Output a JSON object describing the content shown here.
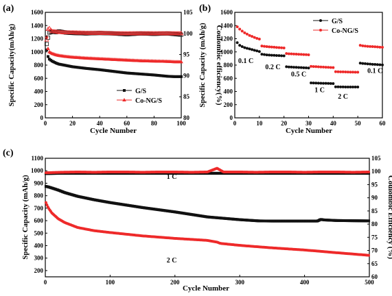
{
  "colors": {
    "black_series": "#111111",
    "red_series": "#ee2a2a"
  },
  "chart_data": [
    {
      "id": "a",
      "panel_label": "(a)",
      "type": "scatter",
      "xlabel": "Cycle Number",
      "ylabel": "Specific Capacity(mAh/g)",
      "ylabel_right": "Coulombic efficiency(%)",
      "xlim": [
        0,
        100
      ],
      "ylim": [
        0,
        1600
      ],
      "ylim_right": [
        80,
        105
      ],
      "xticks": [
        "0",
        "20",
        "40",
        "60",
        "80",
        "100"
      ],
      "yticks": [
        "0",
        "200",
        "400",
        "600",
        "800",
        "1000",
        "1200",
        "1400",
        "1600"
      ],
      "yticks_right": [
        "80",
        "85",
        "90",
        "95",
        "100",
        "105"
      ],
      "legend": [
        "G/S",
        "Co-NG/S"
      ],
      "legend_position": "lower-right",
      "series": [
        {
          "name": "G/S",
          "marker": "square",
          "color": "#111111",
          "x": [
            1,
            2,
            3,
            5,
            8,
            10,
            15,
            20,
            30,
            40,
            50,
            60,
            70,
            80,
            90,
            95,
            100
          ],
          "y": [
            1030,
            930,
            890,
            860,
            830,
            815,
            795,
            775,
            750,
            730,
            705,
            680,
            665,
            650,
            630,
            625,
            625
          ]
        },
        {
          "name": "Co-NG/S",
          "marker": "triangle",
          "color": "#ee2a2a",
          "x": [
            1,
            2,
            3,
            5,
            8,
            10,
            15,
            20,
            30,
            40,
            50,
            60,
            70,
            80,
            90,
            95,
            100
          ],
          "y": [
            1230,
            1050,
            1000,
            975,
            955,
            945,
            930,
            920,
            905,
            895,
            885,
            875,
            865,
            860,
            855,
            850,
            850
          ]
        },
        {
          "name": "",
          "axis": "right",
          "marker": "square-open",
          "color": "#111111",
          "x": [
            1,
            2,
            3,
            5,
            8,
            10,
            15,
            20,
            30,
            40,
            50,
            60,
            70,
            80,
            90,
            100
          ],
          "y": [
            97.5,
            99.0,
            100.2,
            100.4,
            100.3,
            100.5,
            100.2,
            100.1,
            100.0,
            100.1,
            100.0,
            99.8,
            100.0,
            99.9,
            100.0,
            99.7
          ]
        },
        {
          "name": "",
          "axis": "right",
          "marker": "triangle-open",
          "color": "#ee2a2a",
          "x": [
            1,
            2,
            3,
            4,
            5,
            8,
            10,
            15,
            20,
            30,
            40,
            50,
            60,
            70,
            80,
            90,
            100
          ],
          "y": [
            98.5,
            101.0,
            101.2,
            100.8,
            100.5,
            100.4,
            100.3,
            100.2,
            100.2,
            100.1,
            100.1,
            100.0,
            100.0,
            100.0,
            100.0,
            100.0,
            100.0
          ]
        }
      ]
    },
    {
      "id": "b",
      "panel_label": "(b)",
      "type": "scatter",
      "xlabel": "Cycle Number",
      "ylabel": "Specific Capacity (mAh/g)",
      "xlim": [
        0,
        60
      ],
      "ylim": [
        0,
        1600
      ],
      "xticks": [
        "0",
        "10",
        "20",
        "30",
        "40",
        "50",
        "60"
      ],
      "yticks": [
        "0",
        "200",
        "400",
        "600",
        "800",
        "1000",
        "1200",
        "1400",
        "1600"
      ],
      "legend": [
        "G/S",
        "Co-NG/S"
      ],
      "legend_position": "top-right",
      "annotations": [
        {
          "text": "0.1 C",
          "x": 4.5,
          "y": 830
        },
        {
          "text": "0.2 C",
          "x": 15.5,
          "y": 740
        },
        {
          "text": "0.5 C",
          "x": 26,
          "y": 630
        },
        {
          "text": "1 C",
          "x": 34.5,
          "y": 390
        },
        {
          "text": "2 C",
          "x": 44,
          "y": 290
        },
        {
          "text": "0.1 C",
          "x": 57,
          "y": 680
        }
      ],
      "series": [
        {
          "name": "G/S",
          "marker": "circle",
          "color": "#111111",
          "x": [
            1,
            2,
            3,
            4,
            5,
            6,
            7,
            8,
            9,
            10,
            11,
            12,
            13,
            14,
            15,
            16,
            17,
            18,
            19,
            20,
            21,
            22,
            23,
            24,
            25,
            26,
            27,
            28,
            29,
            30,
            31,
            32,
            33,
            34,
            35,
            36,
            37,
            38,
            39,
            40,
            41,
            42,
            43,
            44,
            45,
            46,
            47,
            48,
            49,
            50,
            51,
            52,
            53,
            54,
            55,
            56,
            57,
            58,
            59,
            60
          ],
          "y": [
            1140,
            1100,
            1080,
            1065,
            1055,
            1045,
            1035,
            1025,
            1015,
            1005,
            965,
            960,
            955,
            952,
            950,
            948,
            946,
            944,
            942,
            940,
            775,
            772,
            770,
            768,
            766,
            764,
            762,
            760,
            758,
            756,
            530,
            528,
            527,
            526,
            525,
            524,
            523,
            522,
            521,
            520,
            470,
            470,
            469,
            469,
            468,
            468,
            468,
            467,
            467,
            467,
            830,
            825,
            822,
            818,
            815,
            812,
            810,
            808,
            805,
            803
          ]
        },
        {
          "name": "Co-NG/S",
          "marker": "circle",
          "color": "#ee2a2a",
          "x": [
            1,
            2,
            3,
            4,
            5,
            6,
            7,
            8,
            9,
            10,
            11,
            12,
            13,
            14,
            15,
            16,
            17,
            18,
            19,
            20,
            21,
            22,
            23,
            24,
            25,
            26,
            27,
            28,
            29,
            30,
            31,
            32,
            33,
            34,
            35,
            36,
            37,
            38,
            39,
            40,
            41,
            42,
            43,
            44,
            45,
            46,
            47,
            48,
            49,
            50,
            51,
            52,
            53,
            54,
            55,
            56,
            57,
            58,
            59,
            60
          ],
          "y": [
            1380,
            1345,
            1315,
            1290,
            1270,
            1250,
            1235,
            1220,
            1205,
            1195,
            1090,
            1085,
            1080,
            1077,
            1074,
            1071,
            1068,
            1065,
            1062,
            1060,
            975,
            972,
            970,
            968,
            966,
            964,
            962,
            960,
            958,
            956,
            780,
            778,
            776,
            774,
            772,
            770,
            768,
            766,
            764,
            762,
            700,
            699,
            698,
            697,
            696,
            695,
            694,
            693,
            692,
            692,
            1100,
            1092,
            1088,
            1085,
            1082,
            1080,
            1078,
            1075,
            1072,
            1070
          ]
        }
      ]
    },
    {
      "id": "c",
      "panel_label": "(c)",
      "type": "scatter",
      "xlabel": "Cycle Number",
      "ylabel": "Specific Capacity (mAh/g)",
      "ylabel_right": "Coulombic Efficiency (%)",
      "xlim": [
        0,
        500
      ],
      "ylim": [
        150,
        1100
      ],
      "ylim_right": [
        60,
        105
      ],
      "xticks": [
        "0",
        "100",
        "200",
        "300",
        "400",
        "500"
      ],
      "yticks": [
        "200",
        "300",
        "400",
        "500",
        "600",
        "700",
        "800",
        "900",
        "1000",
        "1100"
      ],
      "yticks_right": [
        "60",
        "65",
        "70",
        "75",
        "80",
        "85",
        "90",
        "95",
        "100",
        "105"
      ],
      "annotations": [
        {
          "text": "1 C",
          "x": 195,
          "y": 935
        },
        {
          "text": "2 C",
          "x": 195,
          "y": 265
        }
      ],
      "series": [
        {
          "name": "",
          "marker": "square",
          "color": "#111111",
          "x": [
            1,
            5,
            10,
            20,
            30,
            50,
            75,
            100,
            150,
            200,
            250,
            300,
            330,
            350,
            400,
            420,
            425,
            430,
            450,
            500
          ],
          "y": [
            875,
            870,
            862,
            845,
            825,
            795,
            768,
            745,
            705,
            670,
            630,
            608,
            598,
            597,
            597,
            597,
            610,
            606,
            601,
            598
          ]
        },
        {
          "name": "",
          "marker": "circle",
          "color": "#ee2a2a",
          "x": [
            1,
            3,
            5,
            10,
            20,
            30,
            50,
            75,
            100,
            150,
            200,
            250,
            265,
            270,
            300,
            350,
            400,
            450,
            500
          ],
          "y": [
            745,
            720,
            700,
            662,
            615,
            585,
            545,
            520,
            505,
            478,
            458,
            442,
            428,
            418,
            402,
            382,
            365,
            343,
            322
          ]
        },
        {
          "name": "",
          "axis": "right",
          "marker": "square",
          "color": "#111111",
          "x": [
            1,
            25,
            50,
            75,
            100,
            125,
            150,
            175,
            200,
            225,
            250,
            275,
            300,
            325,
            350,
            375,
            400,
            425,
            450,
            475,
            500
          ],
          "y": [
            99.2,
            99.3,
            99.3,
            99.3,
            99.3,
            99.3,
            99.3,
            99.3,
            99.3,
            99.3,
            99.3,
            99.3,
            99.3,
            99.3,
            99.3,
            99.3,
            99.3,
            99.3,
            99.3,
            99.3,
            99.3
          ]
        },
        {
          "name": "",
          "axis": "right",
          "marker": "circle",
          "color": "#ee2a2a",
          "x": [
            1,
            25,
            50,
            75,
            100,
            125,
            150,
            175,
            200,
            225,
            250,
            265,
            275,
            300,
            325,
            350,
            375,
            400,
            425,
            450,
            475,
            500
          ],
          "y": [
            99.5,
            99.7,
            99.8,
            99.7,
            99.8,
            99.8,
            99.7,
            99.8,
            99.8,
            99.7,
            99.8,
            101.2,
            99.8,
            99.8,
            99.7,
            99.8,
            99.8,
            99.7,
            99.8,
            99.8,
            99.7,
            99.8
          ]
        }
      ]
    }
  ]
}
